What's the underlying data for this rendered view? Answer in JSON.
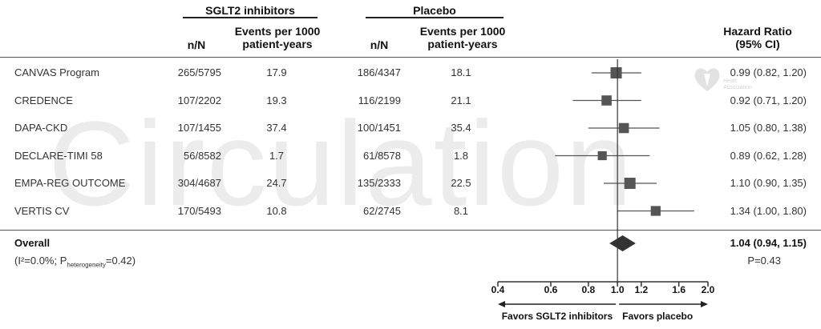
{
  "header": {
    "group1_title": "SGLT2 inhibitors",
    "group2_title": "Placebo",
    "col_nN": "n/N",
    "col_events_line1": "Events per 1000",
    "col_events_line2": "patient-years",
    "col_hr_line1": "Hazard Ratio",
    "col_hr_line2": "(95% CI)"
  },
  "watermark": "Circulation",
  "logo_text_line1": "Heart",
  "logo_text_line2": "Association",
  "chart_data": {
    "type": "forest",
    "x_scale": "log",
    "xlim": [
      0.4,
      2.0
    ],
    "x_ticks": [
      "0.4",
      "0.6",
      "0.8",
      "1.0",
      "1.2",
      "1.6",
      "2.0"
    ],
    "reference_line": 1.0,
    "x_label_left": "Favors SGLT2 inhibitors",
    "x_label_right": "Favors placebo",
    "rows": [
      {
        "study": "CANVAS Program",
        "sglt2_nN": "265/5795",
        "sglt2_rate": "17.9",
        "placebo_nN": "186/4347",
        "placebo_rate": "18.1",
        "hr_text": "0.99 (0.82, 1.20)",
        "hr": 0.99,
        "lo": 0.82,
        "hi": 1.2,
        "weight": 1.0
      },
      {
        "study": "CREDENCE",
        "sglt2_nN": "107/2202",
        "sglt2_rate": "19.3",
        "placebo_nN": "116/2199",
        "placebo_rate": "21.1",
        "hr_text": "0.92 (0.71, 1.20)",
        "hr": 0.92,
        "lo": 0.71,
        "hi": 1.2,
        "weight": 0.8
      },
      {
        "study": "DAPA-CKD",
        "sglt2_nN": "107/1455",
        "sglt2_rate": "37.4",
        "placebo_nN": "100/1451",
        "placebo_rate": "35.4",
        "hr_text": "1.05 (0.80, 1.38)",
        "hr": 1.05,
        "lo": 0.8,
        "hi": 1.38,
        "weight": 0.8
      },
      {
        "study": "DECLARE-TIMI 58",
        "sglt2_nN": "56/8582",
        "sglt2_rate": "1.7",
        "placebo_nN": "61/8578",
        "placebo_rate": "1.8",
        "hr_text": "0.89 (0.62, 1.28)",
        "hr": 0.89,
        "lo": 0.62,
        "hi": 1.28,
        "weight": 0.6
      },
      {
        "study": "EMPA-REG OUTCOME",
        "sglt2_nN": "304/4687",
        "sglt2_rate": "24.7",
        "placebo_nN": "135/2333",
        "placebo_rate": "22.5",
        "hr_text": "1.10 (0.90, 1.35)",
        "hr": 1.1,
        "lo": 0.9,
        "hi": 1.35,
        "weight": 1.0
      },
      {
        "study": "VERTIS CV",
        "sglt2_nN": "170/5493",
        "sglt2_rate": "10.8",
        "placebo_nN": "62/2745",
        "placebo_rate": "8.1",
        "hr_text": "1.34 (1.00, 1.80)",
        "hr": 1.34,
        "lo": 1.0,
        "hi": 1.8,
        "weight": 0.75
      }
    ],
    "overall": {
      "label": "Overall",
      "heterogeneity_prefix": "(I²=0.0%; P",
      "heterogeneity_sub": "heterogeneity",
      "heterogeneity_suffix": "=0.42)",
      "hr_text": "1.04 (0.94, 1.15)",
      "hr": 1.04,
      "lo": 0.94,
      "hi": 1.15,
      "p_text": "P=0.43"
    }
  }
}
